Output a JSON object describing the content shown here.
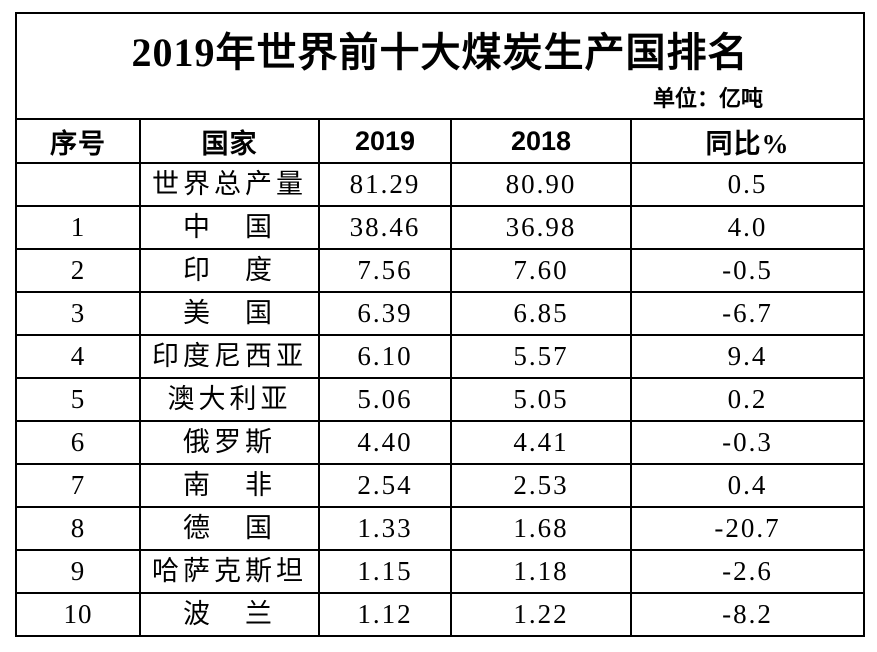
{
  "title": "2019年世界前十大煤炭生产国排名",
  "unit_label": "单位：亿吨",
  "table": {
    "headers": [
      "序号",
      "国家",
      "2019",
      "2018",
      "同比%"
    ],
    "rows": [
      [
        "",
        "世界总产量",
        "81.29",
        "80.90",
        "0.5"
      ],
      [
        "1",
        "中　国",
        "38.46",
        "36.98",
        "4.0"
      ],
      [
        "2",
        "印　度",
        "7.56",
        "7.60",
        "-0.5"
      ],
      [
        "3",
        "美　国",
        "6.39",
        "6.85",
        "-6.7"
      ],
      [
        "4",
        "印度尼西亚",
        "6.10",
        "5.57",
        "9.4"
      ],
      [
        "5",
        "澳大利亚",
        "5.06",
        "5.05",
        "0.2"
      ],
      [
        "6",
        "俄罗斯",
        "4.40",
        "4.41",
        "-0.3"
      ],
      [
        "7",
        "南　非",
        "2.54",
        "2.53",
        "0.4"
      ],
      [
        "8",
        "德　国",
        "1.33",
        "1.68",
        "-20.7"
      ],
      [
        "9",
        "哈萨克斯坦",
        "1.15",
        "1.18",
        "-2.6"
      ],
      [
        "10",
        "波　兰",
        "1.12",
        "1.22",
        "-8.2"
      ]
    ]
  },
  "colors": {
    "border": "#000000",
    "text": "#000000",
    "background": "#ffffff"
  },
  "chart_data": {
    "type": "table",
    "title": "2019年世界前十大煤炭生产国排名",
    "unit": "亿吨",
    "columns": [
      "序号",
      "国家",
      "2019",
      "2018",
      "同比%"
    ],
    "categories": [
      "世界总产量",
      "中国",
      "印度",
      "美国",
      "印度尼西亚",
      "澳大利亚",
      "俄罗斯",
      "南非",
      "德国",
      "哈萨克斯坦",
      "波兰"
    ],
    "series": [
      {
        "name": "2019",
        "values": [
          81.29,
          38.46,
          7.56,
          6.39,
          6.1,
          5.06,
          4.4,
          2.54,
          1.33,
          1.15,
          1.12
        ]
      },
      {
        "name": "2018",
        "values": [
          80.9,
          36.98,
          7.6,
          6.85,
          5.57,
          5.05,
          4.41,
          2.53,
          1.68,
          1.18,
          1.22
        ]
      },
      {
        "name": "同比%",
        "values": [
          0.5,
          4.0,
          -0.5,
          -6.7,
          9.4,
          0.2,
          -0.3,
          0.4,
          -20.7,
          -2.6,
          -8.2
        ]
      }
    ],
    "ranks": [
      null,
      1,
      2,
      3,
      4,
      5,
      6,
      7,
      8,
      9,
      10
    ]
  }
}
